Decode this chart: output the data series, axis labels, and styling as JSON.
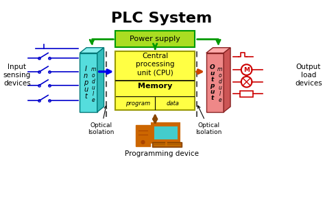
{
  "title": "PLC System",
  "bg_color": "#ffffff",
  "title_fontsize": 16,
  "title_fontweight": "bold",
  "colors": {
    "power_supply": "#aadd22",
    "input_module_front": "#55dddd",
    "input_module_side": "#33bbbb",
    "input_module_top": "#88eeee",
    "cpu_box": "#ffff44",
    "output_module_front": "#ee8888",
    "output_module_side": "#cc5555",
    "output_module_top": "#ffaaaa",
    "green_line": "#009900",
    "blue_arrow": "#0000ee",
    "orange_arrow": "#cc4400",
    "brown_arrow": "#884400",
    "dashed_line": "#555555",
    "input_devices": "#0000cc",
    "output_devices": "#cc0000",
    "computer_body": "#cc6600",
    "computer_screen": "#44cccc",
    "black": "#000000"
  },
  "labels": {
    "power_supply": "Power supply",
    "cpu": "Central\nprocessing\nunit (CPU)",
    "memory": "Memory",
    "program": "program",
    "data": "data",
    "optical_isolation_left": "Optical\nIsolation",
    "optical_isolation_right": "Optical\nIsolation",
    "input_devices": "Input\nsensing\ndevices",
    "output_devices": "Output\nload\ndevices",
    "programming_device": "Programming device",
    "input_vert": "I\nn\np\nu\nt",
    "module_vert": "m\no\nd\nu\nl\ne",
    "output_vert": "O\nu\nt\np\nu\nt"
  }
}
